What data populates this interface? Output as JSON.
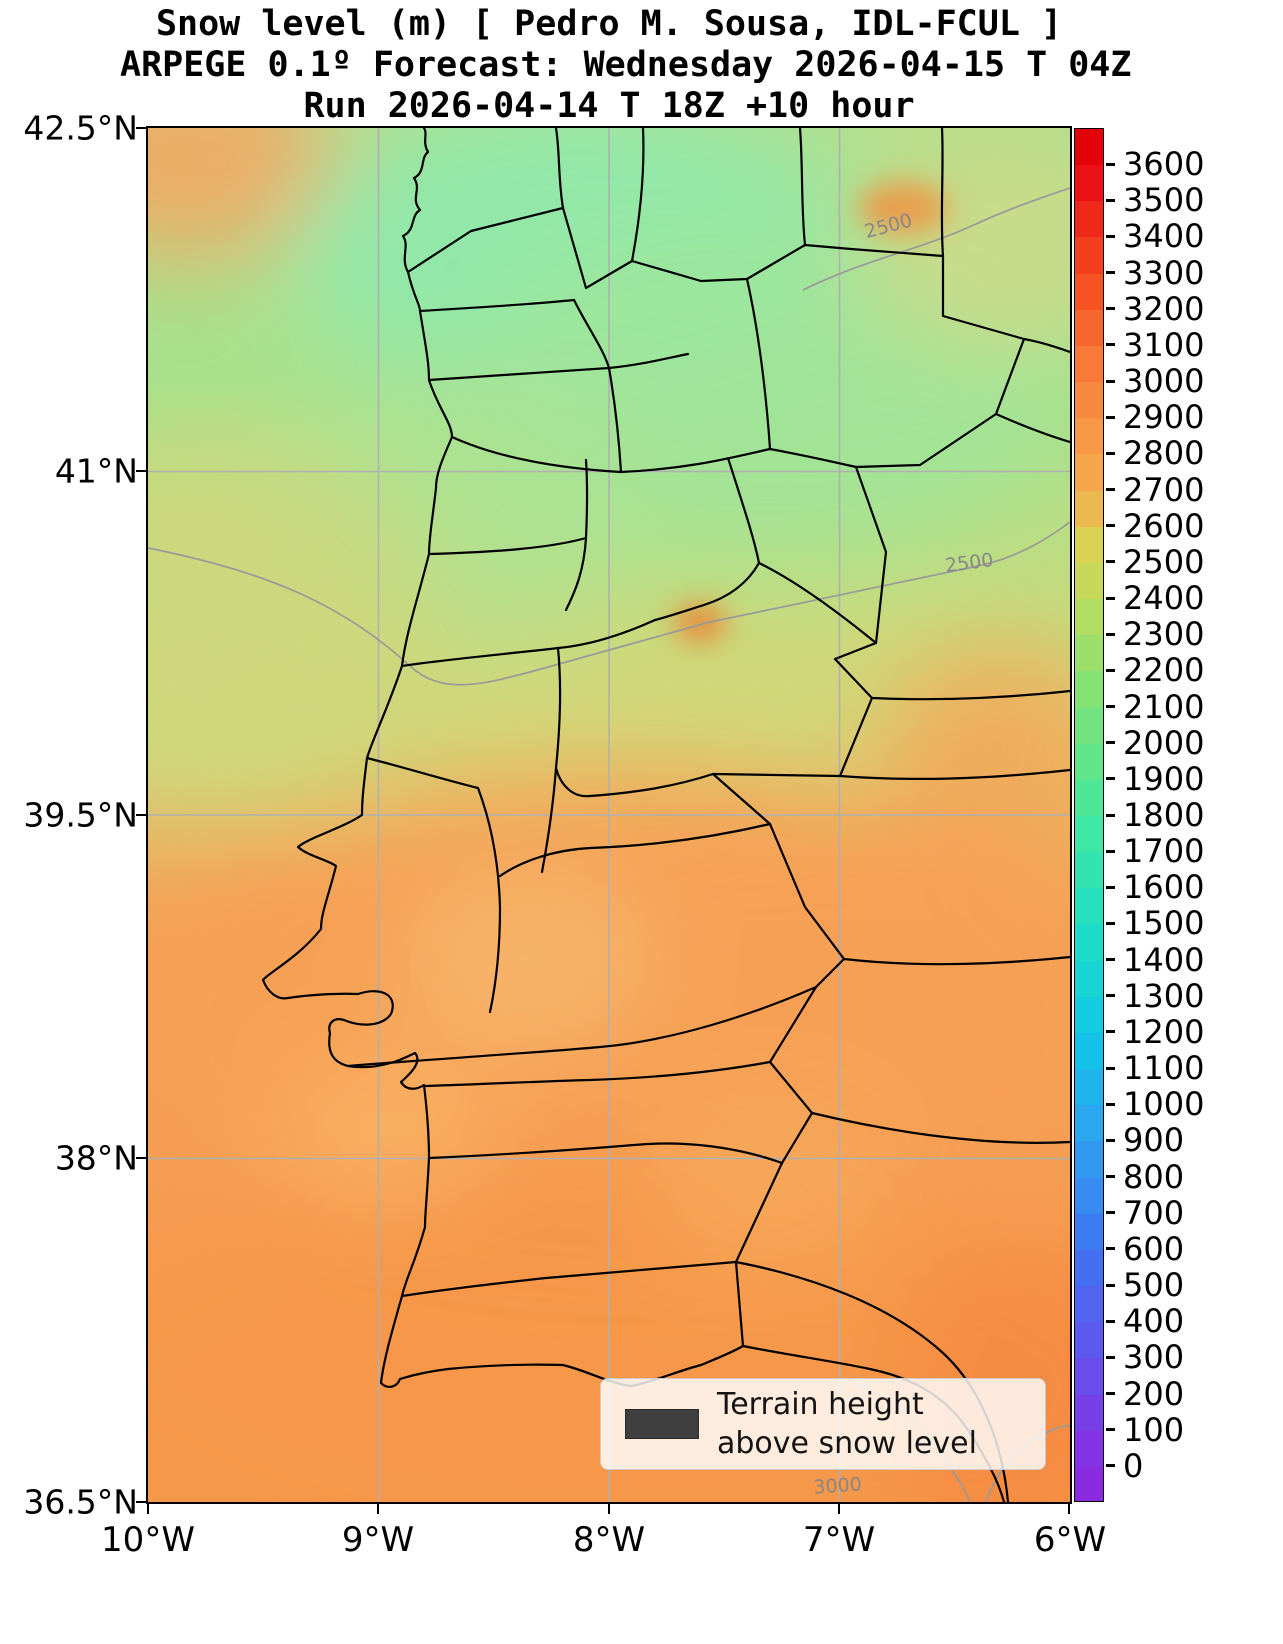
{
  "title": {
    "line1": "Snow level (m) [ Pedro M. Sousa, IDL-FCUL ]",
    "line2": "ARPEGE 0.1º Forecast: Wednesday 2026-04-15 T 04Z",
    "line3": "Run 2026-04-14 T 18Z +10 hour"
  },
  "axes": {
    "x_ticks": [
      "10°W",
      "9°W",
      "8°W",
      "7°W",
      "6°W"
    ],
    "y_ticks": [
      "42.5°N",
      "41°N",
      "39.5°N",
      "38°N",
      "36.5°N"
    ]
  },
  "colorbar": {
    "ticks": [
      "3600",
      "3500",
      "3400",
      "3300",
      "3200",
      "3100",
      "3000",
      "2900",
      "2800",
      "2700",
      "2600",
      "2500",
      "2400",
      "2300",
      "2200",
      "2100",
      "2000",
      "1900",
      "1800",
      "1700",
      "1600",
      "1500",
      "1400",
      "1300",
      "1200",
      "1100",
      "1000",
      "900",
      "800",
      "700",
      "600",
      "500",
      "400",
      "300",
      "200",
      "100",
      "0"
    ],
    "stops": [
      {
        "v": 0,
        "c": "#8a2be2"
      },
      {
        "v": 300,
        "c": "#6253ee"
      },
      {
        "v": 600,
        "c": "#3f75f2"
      },
      {
        "v": 900,
        "c": "#2fa0f0"
      },
      {
        "v": 1200,
        "c": "#0fc8e6"
      },
      {
        "v": 1500,
        "c": "#1fdfc3"
      },
      {
        "v": 1800,
        "c": "#47e79c"
      },
      {
        "v": 2100,
        "c": "#79e379"
      },
      {
        "v": 2400,
        "c": "#bedb5f"
      },
      {
        "v": 2550,
        "c": "#d9d253"
      },
      {
        "v": 2700,
        "c": "#f4ad4e"
      },
      {
        "v": 3000,
        "c": "#f8823d"
      },
      {
        "v": 3300,
        "c": "#f54a20"
      },
      {
        "v": 3600,
        "c": "#ea0613"
      },
      {
        "v": 3700,
        "c": "#e00000"
      }
    ]
  },
  "contours": {
    "labels": [
      {
        "text": "2500"
      },
      {
        "text": "2500"
      },
      {
        "text": "3000"
      }
    ]
  },
  "legend": {
    "line1": "Terrain height",
    "line2": "above snow level",
    "swatch_color": "#3f3f3f"
  },
  "chart_data": {
    "type": "heatmap",
    "title": "Snow level (m)",
    "unit": "m",
    "colorbar_range": {
      "min": 0,
      "max": 3600,
      "step": 100
    },
    "x_extent": [
      "10°W",
      "6°W"
    ],
    "y_extent": [
      "36.5°N",
      "42.5°N"
    ],
    "contour_lines_labeled": [
      2500,
      2500,
      3000
    ],
    "approx_regional_values": {
      "northwest_iberia": "1900-2200",
      "central_band": "2400-2600",
      "southern_iberia": "2700-3000"
    }
  }
}
